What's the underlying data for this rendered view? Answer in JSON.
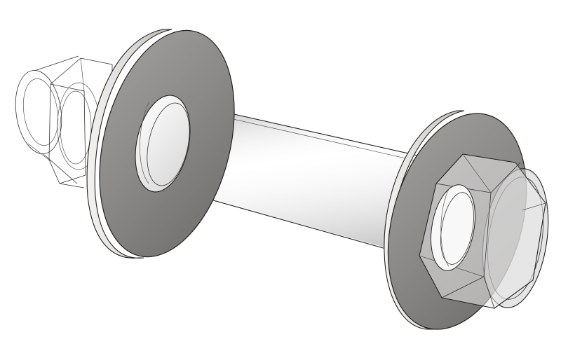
{
  "diagram": {
    "subject": "bolt-washer-nut-assembly",
    "style": "isometric-cad-render",
    "components": [
      {
        "id": "bolt-head",
        "shape": "hex",
        "transparency": "see-through"
      },
      {
        "id": "washer-left",
        "shape": "flat-washer",
        "shading": "grey"
      },
      {
        "id": "bolt-shank",
        "shape": "cylinder",
        "transparency": "see-through"
      },
      {
        "id": "washer-right",
        "shape": "flat-washer",
        "shading": "grey"
      },
      {
        "id": "hex-flange-nut",
        "shape": "hex-flange",
        "transparency": "see-through"
      }
    ],
    "colors": {
      "background": "#ffffff",
      "washer_face": "#8a8886",
      "washer_rim": "#d8d6d2",
      "edge": "#222222"
    }
  }
}
